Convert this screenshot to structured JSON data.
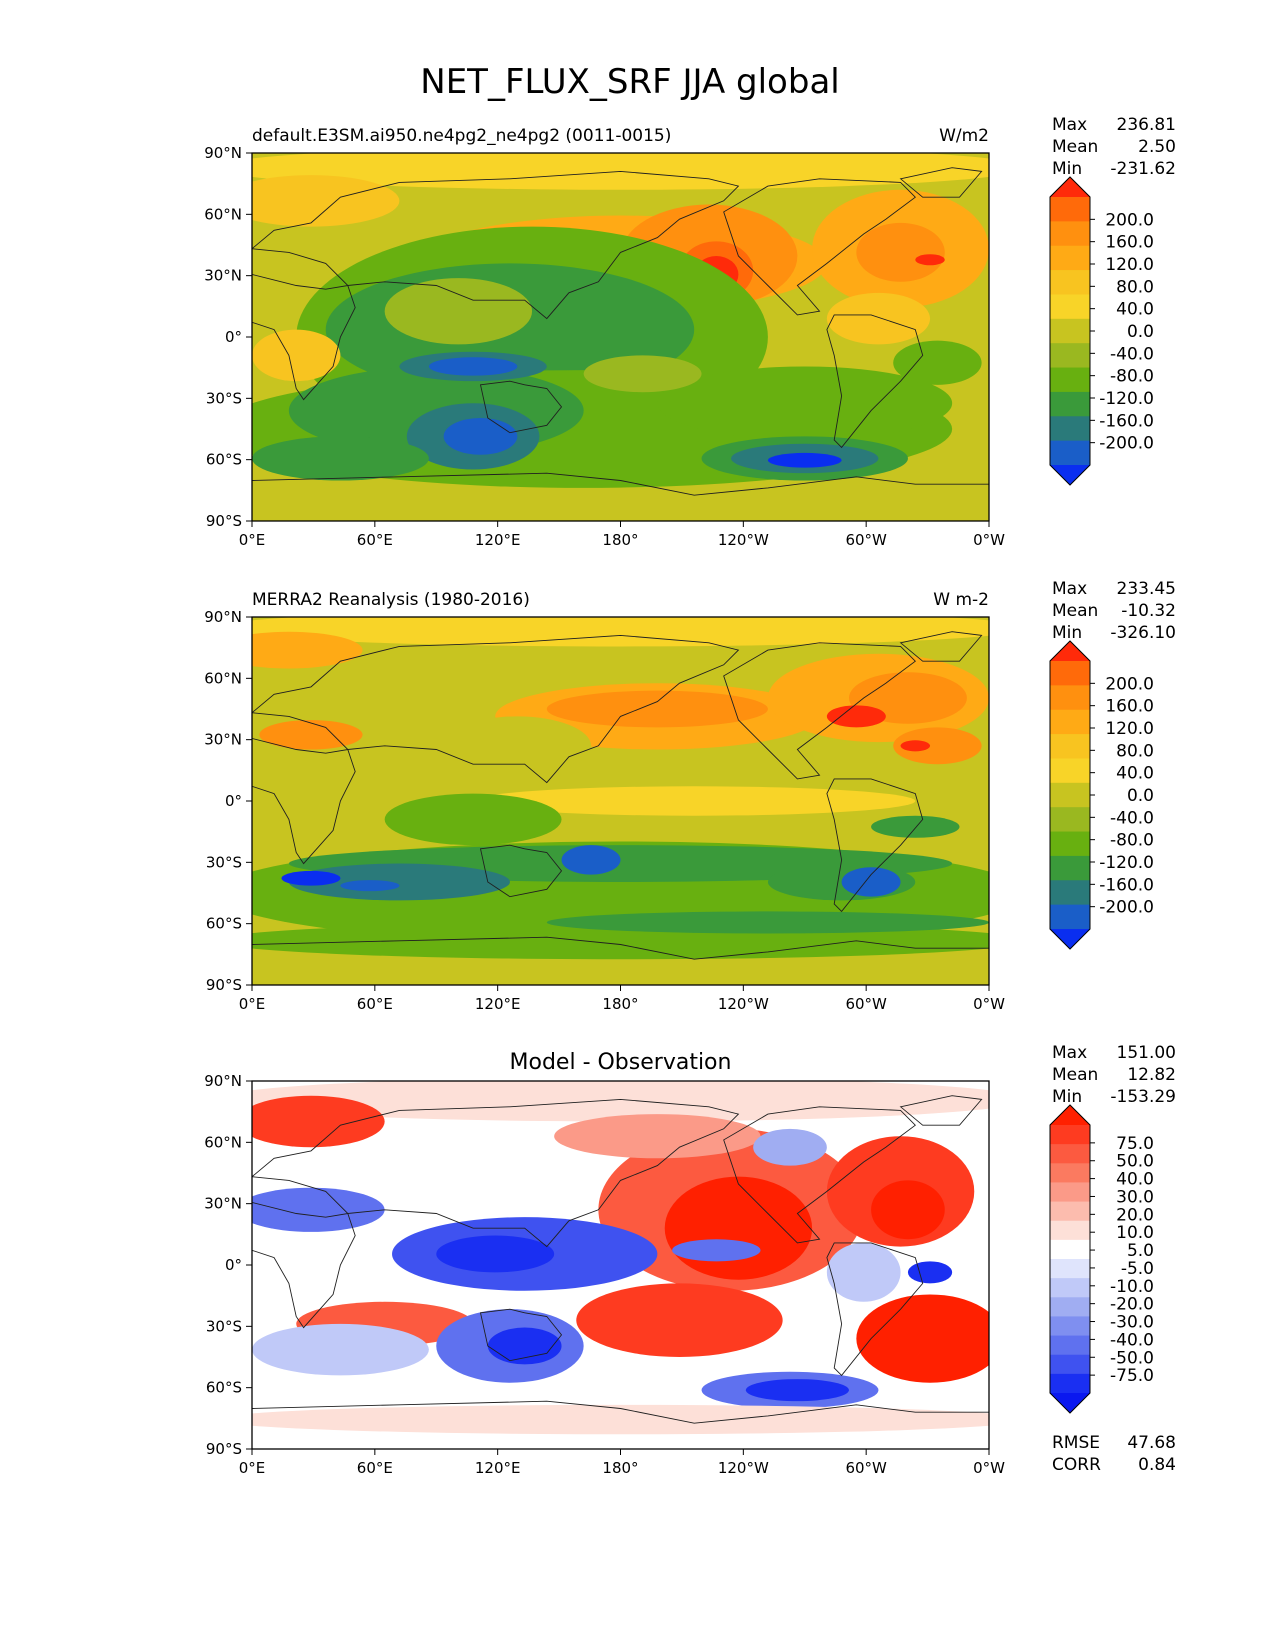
{
  "figure_title": "NET_FLUX_SRF JJA global",
  "chart_data": [
    {
      "type": "heatmap",
      "title": "default.E3SM.ai950.ne4pg2_ne4pg2 (0011-0015)",
      "units": "W/m2",
      "stats": [
        {
          "label": "Max",
          "value": "236.81"
        },
        {
          "label": "Mean",
          "value": "2.50"
        },
        {
          "label": "Min",
          "value": "-231.62"
        }
      ],
      "xticks": [
        "0°E",
        "60°E",
        "120°E",
        "180°",
        "120°W",
        "60°W",
        "0°W"
      ],
      "yticks": [
        "90°N",
        "60°N",
        "30°N",
        "0°",
        "30°S",
        "60°S",
        "90°S"
      ],
      "xlim": [
        0,
        360
      ],
      "ylim": [
        -90,
        90
      ],
      "colorbar": {
        "labels": [
          "200.0",
          "160.0",
          "120.0",
          "80.0",
          "40.0",
          "0.0",
          "-40.0",
          "-80.0",
          "-120.0",
          "-160.0",
          "-200.0"
        ],
        "colors": [
          "#ff2a0a",
          "#ff6a0a",
          "#ff900f",
          "#ffaa15",
          "#f8c420",
          "#f8d428",
          "#c8c420",
          "#9ab820",
          "#68b010",
          "#3a9a3a",
          "#2a7a7a",
          "#1a5ec8",
          "#0a2ef0"
        ]
      }
    },
    {
      "type": "heatmap",
      "title": "MERRA2 Reanalysis (1980-2016)",
      "units": "W m-2",
      "stats": [
        {
          "label": "Max",
          "value": "233.45"
        },
        {
          "label": "Mean",
          "value": "-10.32"
        },
        {
          "label": "Min",
          "value": "-326.10"
        }
      ],
      "xticks": [
        "0°E",
        "60°E",
        "120°E",
        "180°",
        "120°W",
        "60°W",
        "0°W"
      ],
      "yticks": [
        "90°N",
        "60°N",
        "30°N",
        "0°",
        "30°S",
        "60°S",
        "90°S"
      ],
      "xlim": [
        0,
        360
      ],
      "ylim": [
        -90,
        90
      ],
      "colorbar": {
        "labels": [
          "200.0",
          "160.0",
          "120.0",
          "80.0",
          "40.0",
          "0.0",
          "-40.0",
          "-80.0",
          "-120.0",
          "-160.0",
          "-200.0"
        ],
        "colors": [
          "#ff2a0a",
          "#ff6a0a",
          "#ff900f",
          "#ffaa15",
          "#f8c420",
          "#f8d428",
          "#c8c420",
          "#9ab820",
          "#68b010",
          "#3a9a3a",
          "#2a7a7a",
          "#1a5ec8",
          "#0a2ef0"
        ]
      }
    },
    {
      "type": "heatmap",
      "title": "Model - Observation",
      "units": "",
      "stats": [
        {
          "label": "Max",
          "value": "151.00"
        },
        {
          "label": "Mean",
          "value": "12.82"
        },
        {
          "label": "Min",
          "value": "-153.29"
        }
      ],
      "footer_stats": [
        {
          "label": "RMSE",
          "value": "47.68"
        },
        {
          "label": "CORR",
          "value": "0.84"
        }
      ],
      "xticks": [
        "0°E",
        "60°E",
        "120°E",
        "180°",
        "120°W",
        "60°W",
        "0°W"
      ],
      "yticks": [
        "90°N",
        "60°N",
        "30°N",
        "0°",
        "30°S",
        "60°S",
        "90°S"
      ],
      "xlim": [
        0,
        360
      ],
      "ylim": [
        -90,
        90
      ],
      "colorbar": {
        "labels": [
          "75.0",
          "50.0",
          "40.0",
          "30.0",
          "20.0",
          "10.0",
          "5.0",
          "-5.0",
          "-10.0",
          "-20.0",
          "-30.0",
          "-40.0",
          "-50.0",
          "-75.0"
        ],
        "colors": [
          "#ff2000",
          "#fe3b20",
          "#fc5a40",
          "#fb7a60",
          "#fb9a88",
          "#fcbcae",
          "#fde0d8",
          "#ffffff",
          "#dfe4fc",
          "#c0c9f8",
          "#a0adf2",
          "#7f8ff0",
          "#5f71ef",
          "#3f52f0",
          "#1a2ff2",
          "#0a18f0"
        ]
      }
    }
  ]
}
